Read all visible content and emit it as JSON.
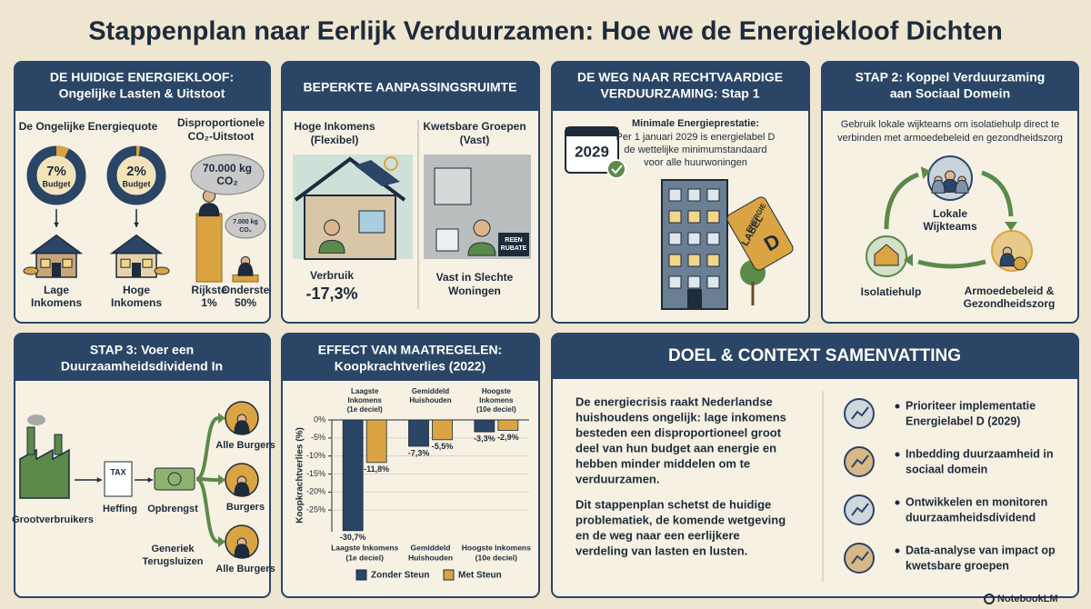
{
  "title": "Stappenplan naar Eerlijk Verduurzamen: Hoe we de Energiekloof Dichten",
  "panel1": {
    "heading": [
      "DE HUIDIGE ENERGIEKLOOF:",
      "Ongelijke Lasten & Uitstoot"
    ],
    "quota_title": "De Ongelijke Energiequote",
    "emissions_title": [
      "Disproportionele",
      "CO₂-Uitstoot"
    ],
    "donuts": [
      {
        "value": 7,
        "label": "7%",
        "sub": "Budget",
        "group": [
          "Lage",
          "Inkomens"
        ]
      },
      {
        "value": 2,
        "label": "2%",
        "sub": "Budget",
        "group": [
          "Hoge",
          "Inkomens"
        ]
      }
    ],
    "emissions": [
      {
        "value": 70000,
        "label": [
          "70.000 kg",
          "CO₂"
        ],
        "group": [
          "Rijkste",
          "1%"
        ]
      },
      {
        "value": 7000,
        "label": [
          "7.000 kg",
          "CO₂"
        ],
        "group": [
          "Onderste",
          "50%"
        ]
      }
    ]
  },
  "panel2": {
    "heading": "BEPERKTE AANPASSINGSRUIMTE",
    "left_title": [
      "Hoge Inkomens",
      "(Flexibel)"
    ],
    "right_title": [
      "Kwetsbare Groepen",
      "(Vast)"
    ],
    "left_stat": [
      "Verbruik",
      "-17,3%"
    ],
    "right_stat": [
      "Vast in Slechte",
      "Woningen"
    ],
    "badge": [
      "REEN",
      "RUBATE"
    ]
  },
  "panel3": {
    "heading": [
      "DE WEG NAAR RECHTVAARDIGE",
      "VERDUURZAMING: Stap 1"
    ],
    "year": "2029",
    "text_title": "Minimale Energieprestatie:",
    "text": [
      "Per 1 januari 2029 is energielabel D",
      "de wettelijke minimumstandaard",
      "voor alle huurwoningen"
    ],
    "tag": [
      "ENERGIE",
      "LABEL",
      "D"
    ]
  },
  "panel4": {
    "heading": [
      "STAP 2: Koppel Verduurzaming",
      "aan Sociaal Domein"
    ],
    "description": [
      "Gebruik lokale wijkteams om isolatiehulp direct te",
      "verbinden met armoedebeleid en gezondheidszorg"
    ],
    "center": [
      "Lokale",
      "Wijkteams"
    ],
    "left": "Isolatiehulp",
    "right": [
      "Armoedebeleid &",
      "Gezondheidszorg"
    ]
  },
  "panel5": {
    "heading": [
      "STAP 3: Voer een",
      "Duurzaamheidsdividend In"
    ],
    "source": "Grootverbruikers",
    "tax_icon": "TAX",
    "levy": "Heffing",
    "revenue": "Opbrengst",
    "branch_label": [
      "Generiek",
      "Terugsluizen"
    ],
    "recipients": [
      "Alle Burgers",
      "Burgers",
      "Alle Burgers"
    ]
  },
  "panel6": {
    "heading": [
      "EFFECT VAN MAATREGELEN:",
      "Koopkrachtverlies (2022)"
    ],
    "chart_data": {
      "type": "bar",
      "y_label": "Koopkrachtverlies (%)",
      "top_labels": [
        [
          "Laagste",
          "Inkomens",
          "(1e deciel)"
        ],
        [
          "Gemiddeld",
          "Huishouden"
        ],
        [
          "Hoogste",
          "Inkomens",
          "(10e deciel)"
        ]
      ],
      "categories": [
        [
          "Laagste Inkomens",
          "(1e deciel)"
        ],
        [
          "Gemiddeld",
          "Huishouden"
        ],
        [
          "Hoogste Inkomens",
          "(10e deciel)"
        ]
      ],
      "series": [
        {
          "name": "Zonder Steun",
          "color": "#2b4566",
          "values": [
            -30.7,
            -7.3,
            -3.3
          ],
          "value_labels": [
            "-30,7%",
            "-7,3%",
            "-3,3%"
          ]
        },
        {
          "name": "Met Steun",
          "color": "#d9a441",
          "values": [
            -11.8,
            -5.5,
            -2.9
          ],
          "value_labels": [
            "-11,8%",
            "-5,5%",
            "-2,9%"
          ]
        }
      ],
      "ylim": [
        -31,
        0
      ],
      "yticks": [
        {
          "value": 0,
          "label": "0%"
        },
        {
          "value": -5,
          "label": "-5%"
        },
        {
          "value": -10,
          "label": "-10%"
        },
        {
          "value": -15,
          "label": "-15%"
        },
        {
          "value": -20,
          "label": "-20%"
        },
        {
          "value": -25,
          "label": "-25%"
        }
      ]
    }
  },
  "panel7": {
    "heading": "DOEL & CONTEXT SAMENVATTING",
    "paragraph1": [
      "De energiecrisis raakt Nederlandse",
      "huishoudens ongelijk: lage inkomens",
      "besteden een disproportioneel groot",
      "deel van hun budget aan energie en",
      "hebben minder middelen om te",
      "verduurzamen."
    ],
    "paragraph2": [
      "Dit stappenplan schetst de huidige",
      "problematiek, de komende wetgeving",
      "en de weg naar een eerlijkere",
      "verdeling van lasten en lusten."
    ],
    "bullets": [
      [
        "Prioriteer implementatie",
        "Energielabel D (2029)"
      ],
      [
        "Inbedding duurzaamheid in",
        "sociaal domein"
      ],
      [
        "Ontwikkelen en monitoren",
        "duurzaamheidsdividend"
      ],
      [
        "Data-analyse van impact op",
        "kwetsbare groepen"
      ]
    ]
  },
  "footer": "NotebookLM"
}
